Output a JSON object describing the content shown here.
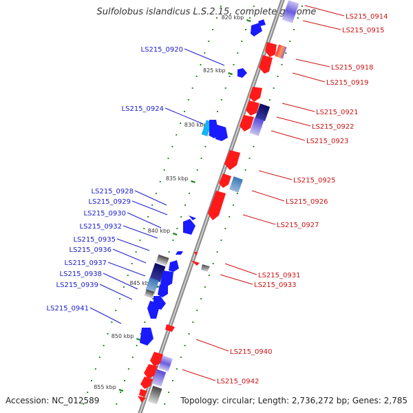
{
  "title": "Sulfolobus islandicus L.S.2.15, complete genome",
  "accession": "Accession: NC_012589",
  "topology": "Topology: circular; Length: 2,736,272 bp; Genes: 2,785",
  "colors": {
    "forward": "#1a1aff",
    "reverse": "#ff1a1a",
    "forward_label": "#1a1acc",
    "reverse_label": "#cc1111",
    "tick": "#2a8a2a"
  },
  "kbp_ticks": [
    "820 kbp",
    "825 kbp",
    "830 kbp",
    "835 kbp",
    "840 kbp",
    "845 kbp",
    "850 kbp",
    "855 kbp"
  ],
  "forward_labels": [
    "LS215_0920",
    "LS215_0924",
    "LS215_0928",
    "LS215_0929",
    "LS215_0930",
    "LS215_0932",
    "LS215_0935",
    "LS215_0936",
    "LS215_0937",
    "LS215_0938",
    "LS215_0939",
    "LS215_0941"
  ],
  "reverse_labels": [
    "LS215_0914",
    "LS215_0915",
    "LS215_0918",
    "LS215_0919",
    "LS215_0921",
    "LS215_0922",
    "LS215_0923",
    "LS215_0925",
    "LS215_0926",
    "LS215_0927",
    "LS215_0931",
    "LS215_0933",
    "LS215_0940",
    "LS215_0942"
  ]
}
